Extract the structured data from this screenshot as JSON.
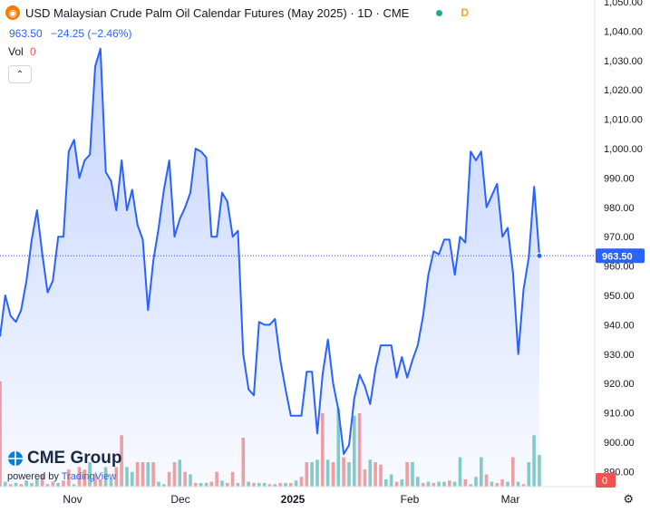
{
  "header": {
    "title": "USD Malaysian Crude Palm Oil Calendar Futures (May 2025) · 1D · CME",
    "badge": "D",
    "price": "963.50",
    "change": "−24.25 (−2.46%)",
    "vol_label": "Vol",
    "vol_value": "0"
  },
  "branding": {
    "name": "CME Group",
    "powered_prefix": "powered by",
    "powered_brand": "TradingView"
  },
  "icons": {
    "logo": "droplet-icon",
    "collapse": "chevron-up-icon",
    "settings": "gear-icon"
  },
  "colors": {
    "line": "#2962ff",
    "up": "#26a69a",
    "down": "#ef5350",
    "label_bg": "#2962ff"
  },
  "chart_data": {
    "type": "area",
    "title": "USD Malaysian Crude Palm Oil Calendar Futures (May 2025) · 1D · CME",
    "x_ticks": [
      "Nov",
      "Dec",
      "2025",
      "Feb",
      "Mar"
    ],
    "y_ticks": [
      "1,050.00",
      "1,040.00",
      "1,030.00",
      "1,020.00",
      "1,010.00",
      "1,000.00",
      "990.00",
      "980.00",
      "970.00",
      "960.00",
      "950.00",
      "940.00",
      "930.00",
      "920.00",
      "910.00",
      "900.00",
      "890.00"
    ],
    "ylim": [
      887,
      1050
    ],
    "last_value": 963.5,
    "last_label": "963.50",
    "volume_last_label": "0",
    "series": [
      {
        "values": [
          936,
          950,
          943,
          941,
          945,
          955,
          969,
          979,
          964,
          951,
          955,
          970,
          970,
          999,
          1003,
          990,
          996,
          998,
          1028,
          1034,
          992,
          989,
          979,
          996,
          979,
          986,
          974,
          969,
          945,
          962,
          973,
          986,
          996,
          970,
          976,
          980,
          985,
          1000,
          999,
          997,
          970,
          970,
          985,
          982,
          970,
          972,
          930,
          918,
          916,
          941,
          940,
          940,
          942,
          928,
          918,
          909,
          909,
          909,
          924,
          924,
          903,
          923,
          935,
          920,
          911,
          896,
          899,
          915,
          923,
          919,
          913,
          925,
          933,
          933,
          933,
          922,
          929,
          922,
          928,
          933,
          943,
          957,
          965,
          964,
          969,
          969,
          957,
          970,
          968,
          999,
          996,
          999,
          980,
          984,
          988,
          970,
          973,
          958,
          930,
          952,
          963,
          987,
          963.5
        ]
      }
    ],
    "volume": [
      {
        "v": 0.86,
        "up": false
      },
      {
        "v": 0.04,
        "up": true
      },
      {
        "v": 0.02,
        "up": false
      },
      {
        "v": 0.03,
        "up": true
      },
      {
        "v": 0.02,
        "up": false
      },
      {
        "v": 0.05,
        "up": true
      },
      {
        "v": 0.03,
        "up": true
      },
      {
        "v": 0.06,
        "up": true
      },
      {
        "v": 0.1,
        "up": false
      },
      {
        "v": 0.02,
        "up": true
      },
      {
        "v": 0.04,
        "up": false
      },
      {
        "v": 0.03,
        "up": true
      },
      {
        "v": 0.05,
        "up": false
      },
      {
        "v": 0.14,
        "up": false
      },
      {
        "v": 0.02,
        "up": true
      },
      {
        "v": 0.16,
        "up": false
      },
      {
        "v": 0.14,
        "up": false
      },
      {
        "v": 0.2,
        "up": true
      },
      {
        "v": 0.1,
        "up": false
      },
      {
        "v": 0.06,
        "up": false
      },
      {
        "v": 0.16,
        "up": true
      },
      {
        "v": 0.06,
        "up": true
      },
      {
        "v": 0.16,
        "up": false
      },
      {
        "v": 0.42,
        "up": false
      },
      {
        "v": 0.16,
        "up": true
      },
      {
        "v": 0.12,
        "up": true
      },
      {
        "v": 0.2,
        "up": false
      },
      {
        "v": 0.2,
        "up": false
      },
      {
        "v": 0.2,
        "up": true
      },
      {
        "v": 0.2,
        "up": false
      },
      {
        "v": 0.04,
        "up": true
      },
      {
        "v": 0.02,
        "up": true
      },
      {
        "v": 0.12,
        "up": false
      },
      {
        "v": 0.2,
        "up": false
      },
      {
        "v": 0.22,
        "up": true
      },
      {
        "v": 0.12,
        "up": false
      },
      {
        "v": 0.1,
        "up": true
      },
      {
        "v": 0.03,
        "up": false
      },
      {
        "v": 0.03,
        "up": true
      },
      {
        "v": 0.03,
        "up": true
      },
      {
        "v": 0.04,
        "up": false
      },
      {
        "v": 0.12,
        "up": false
      },
      {
        "v": 0.05,
        "up": true
      },
      {
        "v": 0.03,
        "up": false
      },
      {
        "v": 0.12,
        "up": false
      },
      {
        "v": 0.03,
        "up": true
      },
      {
        "v": 0.4,
        "up": false
      },
      {
        "v": 0.04,
        "up": true
      },
      {
        "v": 0.03,
        "up": false
      },
      {
        "v": 0.03,
        "up": true
      },
      {
        "v": 0.03,
        "up": true
      },
      {
        "v": 0.02,
        "up": false
      },
      {
        "v": 0.02,
        "up": true
      },
      {
        "v": 0.03,
        "up": false
      },
      {
        "v": 0.03,
        "up": true
      },
      {
        "v": 0.03,
        "up": false
      },
      {
        "v": 0.05,
        "up": true
      },
      {
        "v": 0.08,
        "up": false
      },
      {
        "v": 0.2,
        "up": false
      },
      {
        "v": 0.2,
        "up": true
      },
      {
        "v": 0.22,
        "up": true
      },
      {
        "v": 0.6,
        "up": false
      },
      {
        "v": 0.22,
        "up": true
      },
      {
        "v": 0.2,
        "up": false
      },
      {
        "v": 0.64,
        "up": true
      },
      {
        "v": 0.24,
        "up": false
      },
      {
        "v": 0.2,
        "up": true
      },
      {
        "v": 0.58,
        "up": true
      },
      {
        "v": 0.6,
        "up": false
      },
      {
        "v": 0.14,
        "up": false
      },
      {
        "v": 0.22,
        "up": true
      },
      {
        "v": 0.2,
        "up": false
      },
      {
        "v": 0.18,
        "up": false
      },
      {
        "v": 0.06,
        "up": true
      },
      {
        "v": 0.1,
        "up": true
      },
      {
        "v": 0.04,
        "up": false
      },
      {
        "v": 0.06,
        "up": true
      },
      {
        "v": 0.2,
        "up": false
      },
      {
        "v": 0.2,
        "up": true
      },
      {
        "v": 0.08,
        "up": true
      },
      {
        "v": 0.03,
        "up": false
      },
      {
        "v": 0.04,
        "up": true
      },
      {
        "v": 0.03,
        "up": false
      },
      {
        "v": 0.04,
        "up": true
      },
      {
        "v": 0.04,
        "up": true
      },
      {
        "v": 0.05,
        "up": false
      },
      {
        "v": 0.04,
        "up": true
      },
      {
        "v": 0.24,
        "up": true
      },
      {
        "v": 0.06,
        "up": false
      },
      {
        "v": 0.02,
        "up": true
      },
      {
        "v": 0.08,
        "up": true
      },
      {
        "v": 0.24,
        "up": true
      },
      {
        "v": 0.1,
        "up": false
      },
      {
        "v": 0.04,
        "up": true
      },
      {
        "v": 0.03,
        "up": false
      },
      {
        "v": 0.06,
        "up": false
      },
      {
        "v": 0.04,
        "up": true
      },
      {
        "v": 0.24,
        "up": false
      },
      {
        "v": 0.04,
        "up": true
      },
      {
        "v": 0.02,
        "up": false
      },
      {
        "v": 0.2,
        "up": true
      },
      {
        "v": 0.42,
        "up": true
      },
      {
        "v": 0.26,
        "up": true
      }
    ]
  }
}
